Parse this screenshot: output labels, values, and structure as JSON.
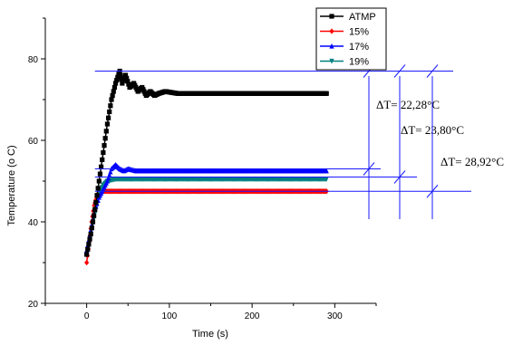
{
  "chart_data": {
    "type": "line",
    "title": "",
    "xlabel": "Time (s)",
    "ylabel": "Temperature (o C)",
    "xlim": [
      -50,
      350
    ],
    "ylim": [
      20,
      90
    ],
    "xticks": [
      0,
      100,
      200,
      300
    ],
    "yticks": [
      20,
      40,
      60,
      80
    ],
    "legend_position": "top-right",
    "series": [
      {
        "name": "ATMP",
        "color": "#000000",
        "marker": "square",
        "points": [
          [
            0,
            32
          ],
          [
            5,
            37
          ],
          [
            10,
            43
          ],
          [
            15,
            50
          ],
          [
            20,
            57
          ],
          [
            25,
            64
          ],
          [
            30,
            70
          ],
          [
            35,
            74
          ],
          [
            40,
            77
          ],
          [
            43,
            74
          ],
          [
            47,
            76
          ],
          [
            52,
            73
          ],
          [
            57,
            74
          ],
          [
            62,
            72
          ],
          [
            67,
            73
          ],
          [
            72,
            71
          ],
          [
            77,
            72
          ],
          [
            82,
            71
          ],
          [
            87,
            71.5
          ],
          [
            95,
            72
          ],
          [
            110,
            71.5
          ],
          [
            150,
            71.5
          ],
          [
            200,
            71.5
          ],
          [
            250,
            71.5
          ],
          [
            290,
            71.5
          ]
        ]
      },
      {
        "name": "15%",
        "color": "#ff0000",
        "marker": "diamond",
        "points": [
          [
            0,
            30
          ],
          [
            3,
            35
          ],
          [
            6,
            40
          ],
          [
            9,
            44
          ],
          [
            12,
            46
          ],
          [
            15,
            47.5
          ],
          [
            20,
            47.5
          ],
          [
            50,
            47.5
          ],
          [
            100,
            47.5
          ],
          [
            150,
            47.5
          ],
          [
            200,
            47.5
          ],
          [
            250,
            47.5
          ],
          [
            290,
            47.5
          ]
        ]
      },
      {
        "name": "17%",
        "color": "#0000ff",
        "marker": "triangle-up",
        "points": [
          [
            0,
            33
          ],
          [
            5,
            38
          ],
          [
            10,
            43
          ],
          [
            15,
            46
          ],
          [
            20,
            48
          ],
          [
            25,
            50
          ],
          [
            30,
            53
          ],
          [
            35,
            54
          ],
          [
            40,
            53
          ],
          [
            45,
            52.5
          ],
          [
            50,
            53
          ],
          [
            60,
            52.5
          ],
          [
            70,
            52.5
          ],
          [
            100,
            52.5
          ],
          [
            150,
            52.5
          ],
          [
            200,
            52.5
          ],
          [
            250,
            52.5
          ],
          [
            290,
            52.5
          ]
        ]
      },
      {
        "name": "19%",
        "color": "#008080",
        "marker": "triangle-down",
        "points": [
          [
            0,
            32
          ],
          [
            5,
            37
          ],
          [
            10,
            42
          ],
          [
            15,
            47
          ],
          [
            20,
            49
          ],
          [
            25,
            50
          ],
          [
            35,
            50.5
          ],
          [
            50,
            50.5
          ],
          [
            100,
            50.5
          ],
          [
            150,
            50.5
          ],
          [
            200,
            50.5
          ],
          [
            250,
            50.5
          ],
          [
            290,
            50.5
          ]
        ]
      }
    ],
    "annotations": [
      {
        "label": "ΔT= 22,28°C",
        "upper": 77,
        "lower": 53
      },
      {
        "label": "ΔT= 23,80°C",
        "upper": 77,
        "lower": 51
      },
      {
        "label": "ΔT= 28,92°C",
        "upper": 77,
        "lower": 47.5
      }
    ]
  }
}
